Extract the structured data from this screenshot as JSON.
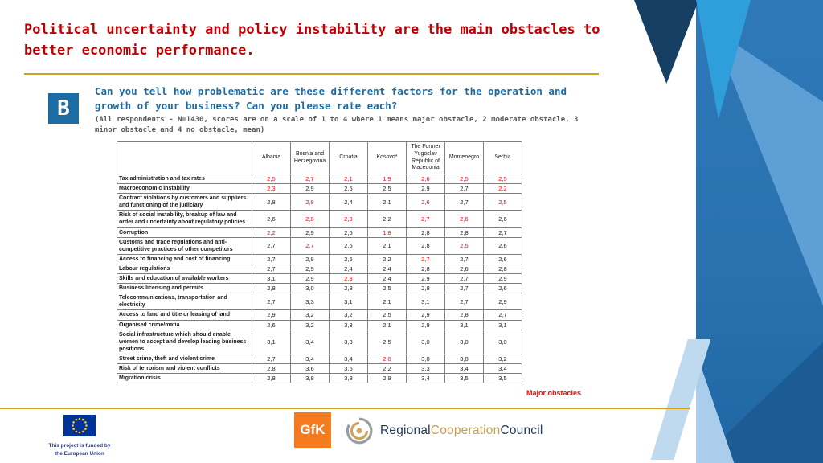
{
  "slide": {
    "title": "Political uncertainty and policy instability are the main obstacles to better economic performance.",
    "badge": "B",
    "question": "Can you tell how problematic are these different factors for the operation and growth of your business? Can you please rate each?",
    "note": "(All respondents - N=1430, scores are on a scale of 1 to 4 where 1 means major obstacle, 2 moderate obstacle, 3 minor obstacle and 4 no obstacle, mean)",
    "legend_major_obstacles": "Major obstacles"
  },
  "chart_data": {
    "type": "table",
    "columns": [
      "Albania",
      "Bosnia and Herzegovina",
      "Croatia",
      "Kosovo*",
      "The Former Yugoslav Republic of Macedonia",
      "Montenegro",
      "Serbia"
    ],
    "rows": [
      {
        "label": "Tax administration and tax rates",
        "values": [
          "2,5",
          "2,7",
          "2,1",
          "1,9",
          "2,6",
          "2,5",
          "2,5"
        ],
        "red": [
          1,
          1,
          1,
          1,
          1,
          1,
          1
        ]
      },
      {
        "label": "Macroeconomic instability",
        "values": [
          "2,3",
          "2,9",
          "2,5",
          "2,5",
          "2,9",
          "2,7",
          "2,2"
        ],
        "red": [
          1,
          0,
          0,
          0,
          0,
          0,
          1
        ]
      },
      {
        "label": "Contract violations by customers and suppliers and functioning of the judiciary",
        "values": [
          "2,8",
          "2,8",
          "2,4",
          "2,1",
          "2,6",
          "2,7",
          "2,5"
        ],
        "red": [
          0,
          1,
          0,
          0,
          1,
          0,
          1
        ]
      },
      {
        "label": "Risk of social instability, breakup of law and order and uncertainty about regulatory policies",
        "values": [
          "2,6",
          "2,8",
          "2,3",
          "2,2",
          "2,7",
          "2,6",
          "2,6"
        ],
        "red": [
          0,
          1,
          1,
          0,
          1,
          1,
          0
        ]
      },
      {
        "label": "Corruption",
        "values": [
          "2,2",
          "2,9",
          "2,5",
          "1,8",
          "2,8",
          "2,8",
          "2,7"
        ],
        "red": [
          1,
          0,
          0,
          1,
          0,
          0,
          0
        ]
      },
      {
        "label": "Customs and trade regulations and anti-competitive practices of other competitors",
        "values": [
          "2,7",
          "2,7",
          "2,5",
          "2,1",
          "2,8",
          "2,5",
          "2,6"
        ],
        "red": [
          0,
          1,
          0,
          0,
          0,
          1,
          0
        ]
      },
      {
        "label": "Access to financing and cost of financing",
        "values": [
          "2,7",
          "2,9",
          "2,6",
          "2,2",
          "2,7",
          "2,7",
          "2,6"
        ],
        "red": [
          0,
          0,
          0,
          0,
          1,
          0,
          0
        ]
      },
      {
        "label": "Labour regulations",
        "values": [
          "2,7",
          "2,9",
          "2,4",
          "2,4",
          "2,8",
          "2,6",
          "2,8"
        ],
        "red": [
          0,
          0,
          0,
          0,
          0,
          0,
          0
        ]
      },
      {
        "label": "Skills and education of available workers",
        "values": [
          "3,1",
          "2,9",
          "2,3",
          "2,4",
          "2,9",
          "2,7",
          "2,9"
        ],
        "red": [
          0,
          0,
          1,
          0,
          0,
          0,
          0
        ]
      },
      {
        "label": "Business licensing and permits",
        "values": [
          "2,8",
          "3,0",
          "2,8",
          "2,5",
          "2,8",
          "2,7",
          "2,6"
        ],
        "red": [
          0,
          0,
          0,
          0,
          0,
          0,
          0
        ]
      },
      {
        "label": "Telecommunications, transportation and electricity",
        "values": [
          "2,7",
          "3,3",
          "3,1",
          "2,1",
          "3,1",
          "2,7",
          "2,9"
        ],
        "red": [
          0,
          0,
          0,
          0,
          0,
          0,
          0
        ]
      },
      {
        "label": "Access to land and title or leasing of land",
        "values": [
          "2,9",
          "3,2",
          "3,2",
          "2,5",
          "2,9",
          "2,8",
          "2,7"
        ],
        "red": [
          0,
          0,
          0,
          0,
          0,
          0,
          0
        ]
      },
      {
        "label": "Organised crime/mafia",
        "values": [
          "2,6",
          "3,2",
          "3,3",
          "2,1",
          "2,9",
          "3,1",
          "3,1"
        ],
        "red": [
          0,
          0,
          0,
          0,
          0,
          0,
          0
        ]
      },
      {
        "label": "Social infrastructure which should enable women to accept and develop leading business positions",
        "values": [
          "3,1",
          "3,4",
          "3,3",
          "2,5",
          "3,0",
          "3,0",
          "3,0"
        ],
        "red": [
          0,
          0,
          0,
          0,
          0,
          0,
          0
        ]
      },
      {
        "label": "Street crime, theft and violent crime",
        "values": [
          "2,7",
          "3,4",
          "3,4",
          "2,0",
          "3,0",
          "3,0",
          "3,2"
        ],
        "red": [
          0,
          0,
          0,
          1,
          0,
          0,
          0
        ]
      },
      {
        "label": "Risk of terrorism and violent conflicts",
        "values": [
          "2,8",
          "3,6",
          "3,6",
          "2,2",
          "3,3",
          "3,4",
          "3,4"
        ],
        "red": [
          0,
          0,
          0,
          0,
          0,
          0,
          0
        ]
      },
      {
        "label": "Migration crisis",
        "values": [
          "2,8",
          "3,8",
          "3,8",
          "2,9",
          "3,4",
          "3,5",
          "3,5"
        ],
        "red": [
          0,
          0,
          0,
          0,
          0,
          0,
          0
        ]
      }
    ]
  },
  "footer": {
    "eu_text_line1": "This project is funded by",
    "eu_text_line2": "the European Union",
    "gfk_label": "GfK",
    "rcc_regional": "Regional",
    "rcc_cooperation": "Cooperation",
    "rcc_council": "Council"
  },
  "colors": {
    "title_red": "#C00000",
    "accent_blue": "#1B6CA5",
    "note_gray": "#595959",
    "gold": "#D4A017",
    "value_red": "#FF0000",
    "table_border": "#7f7f7f",
    "band_blue": "#2E79B8",
    "navy": "#173E63",
    "cyan": "#2F9FDB",
    "eu_blue": "#003399",
    "eu_star": "#FFCC00",
    "gfk_orange": "#F47B20",
    "rcc_navy": "#21395C",
    "rcc_gold": "#C99F52"
  }
}
